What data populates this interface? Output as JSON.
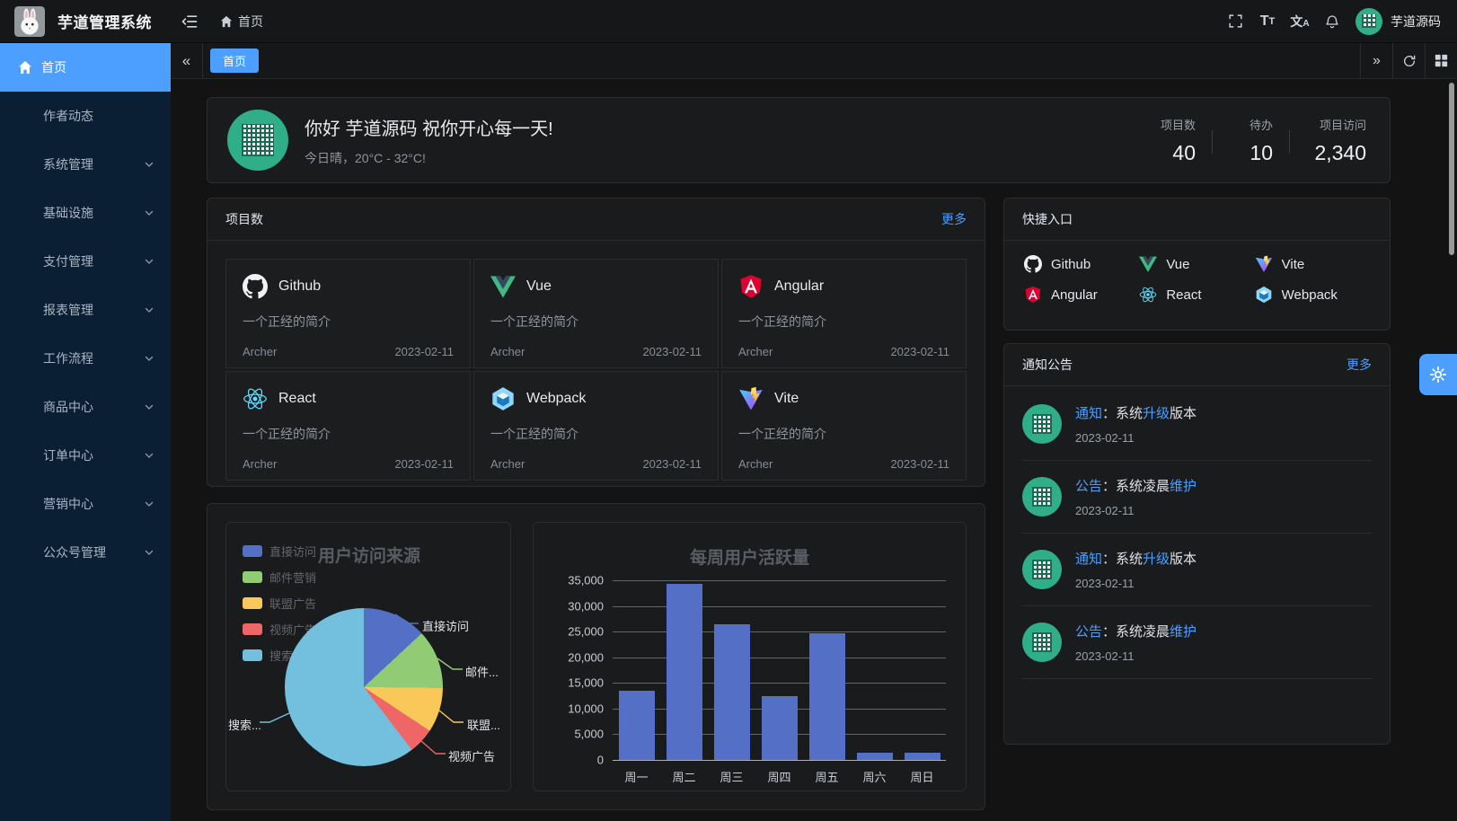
{
  "colors": {
    "accent": "#4c9eff",
    "sidebar_bg": "#0a1e34",
    "card_bg": "#1a1b1d",
    "page_bg": "#131314",
    "bar_color": "#5470c6"
  },
  "header": {
    "title": "芋道管理系统",
    "breadcrumb": "首页",
    "user": "芋道源码",
    "icons": [
      "fullscreen-icon",
      "font-size-icon",
      "locale-icon",
      "bell-icon"
    ]
  },
  "sidebar": {
    "items": [
      {
        "label": "首页",
        "active": true,
        "icon": "home",
        "chevron": false
      },
      {
        "label": "作者动态",
        "chevron": false
      },
      {
        "label": "系统管理",
        "chevron": true
      },
      {
        "label": "基础设施",
        "chevron": true
      },
      {
        "label": "支付管理",
        "chevron": true
      },
      {
        "label": "报表管理",
        "chevron": true
      },
      {
        "label": "工作流程",
        "chevron": true
      },
      {
        "label": "商品中心",
        "chevron": true
      },
      {
        "label": "订单中心",
        "chevron": true
      },
      {
        "label": "营销中心",
        "chevron": true
      },
      {
        "label": "公众号管理",
        "chevron": true
      }
    ]
  },
  "tabbar": {
    "tabs": [
      {
        "label": "首页",
        "active": true
      }
    ]
  },
  "greeting": {
    "title": "你好 芋道源码 祝你开心每一天!",
    "subtitle": "今日晴，20°C - 32°C!",
    "stats": [
      {
        "label": "项目数",
        "value": "40"
      },
      {
        "label": "待办",
        "value": "10"
      },
      {
        "label": "项目访问",
        "value": "2,340"
      }
    ]
  },
  "projects": {
    "title": "项目数",
    "more": "更多",
    "items": [
      {
        "name": "Github",
        "icon": "github",
        "desc": "一个正经的简介",
        "author": "Archer",
        "date": "2023-02-11"
      },
      {
        "name": "Vue",
        "icon": "vue",
        "desc": "一个正经的简介",
        "author": "Archer",
        "date": "2023-02-11"
      },
      {
        "name": "Angular",
        "icon": "angular",
        "desc": "一个正经的简介",
        "author": "Archer",
        "date": "2023-02-11"
      },
      {
        "name": "React",
        "icon": "react",
        "desc": "一个正经的简介",
        "author": "Archer",
        "date": "2023-02-11"
      },
      {
        "name": "Webpack",
        "icon": "webpack",
        "desc": "一个正经的简介",
        "author": "Archer",
        "date": "2023-02-11"
      },
      {
        "name": "Vite",
        "icon": "vite",
        "desc": "一个正经的简介",
        "author": "Archer",
        "date": "2023-02-11"
      }
    ]
  },
  "quick": {
    "title": "快捷入口",
    "items": [
      {
        "label": "Github",
        "icon": "github"
      },
      {
        "label": "Vue",
        "icon": "vue"
      },
      {
        "label": "Vite",
        "icon": "vite"
      },
      {
        "label": "Angular",
        "icon": "angular"
      },
      {
        "label": "React",
        "icon": "react"
      },
      {
        "label": "Webpack",
        "icon": "webpack"
      }
    ]
  },
  "notices": {
    "title": "通知公告",
    "more": "更多",
    "items": [
      {
        "segments": [
          {
            "text": "通知",
            "link": true
          },
          {
            "text": "：系统",
            "link": false
          },
          {
            "text": "升级",
            "link": true
          },
          {
            "text": "版本",
            "link": false
          }
        ],
        "date": "2023-02-11"
      },
      {
        "segments": [
          {
            "text": "公告",
            "link": true
          },
          {
            "text": "：系统凌晨",
            "link": false
          },
          {
            "text": "维护",
            "link": true
          }
        ],
        "date": "2023-02-11"
      },
      {
        "segments": [
          {
            "text": "通知",
            "link": true
          },
          {
            "text": "：系统",
            "link": false
          },
          {
            "text": "升级",
            "link": true
          },
          {
            "text": "版本",
            "link": false
          }
        ],
        "date": "2023-02-11"
      },
      {
        "segments": [
          {
            "text": "公告",
            "link": true
          },
          {
            "text": "：系统凌晨",
            "link": false
          },
          {
            "text": "维护",
            "link": true
          }
        ],
        "date": "2023-02-11"
      }
    ]
  },
  "chart_data": [
    {
      "type": "pie",
      "title": "用户访问来源",
      "legend": [
        "直接访问",
        "邮件营销",
        "联盟广告",
        "视频广告",
        "搜索引擎"
      ],
      "series": [
        {
          "name": "直接访问",
          "value": 335
        },
        {
          "name": "邮件营销",
          "value": 310
        },
        {
          "name": "联盟广告",
          "value": 234
        },
        {
          "name": "视频广告",
          "value": 135
        },
        {
          "name": "搜索引擎",
          "value": 1548
        }
      ],
      "labels": [
        "直接访问",
        "邮件...",
        "联盟...",
        "视频广告",
        "搜索..."
      ],
      "colors": [
        "#5470c6",
        "#91cc75",
        "#fac858",
        "#ee6666",
        "#73c0de"
      ],
      "legend_position": "top-left"
    },
    {
      "type": "bar",
      "title": "每周用户活跃量",
      "categories": [
        "周一",
        "周二",
        "周三",
        "周四",
        "周五",
        "周六",
        "周日"
      ],
      "values": [
        13400,
        34300,
        26400,
        12400,
        24700,
        1400,
        1400
      ],
      "ylim": [
        0,
        35000
      ],
      "yticks": [
        "0",
        "5,000",
        "10,000",
        "15,000",
        "20,000",
        "25,000",
        "30,000",
        "35,000"
      ],
      "grid": true,
      "bar_color": "#5470c6"
    }
  ]
}
